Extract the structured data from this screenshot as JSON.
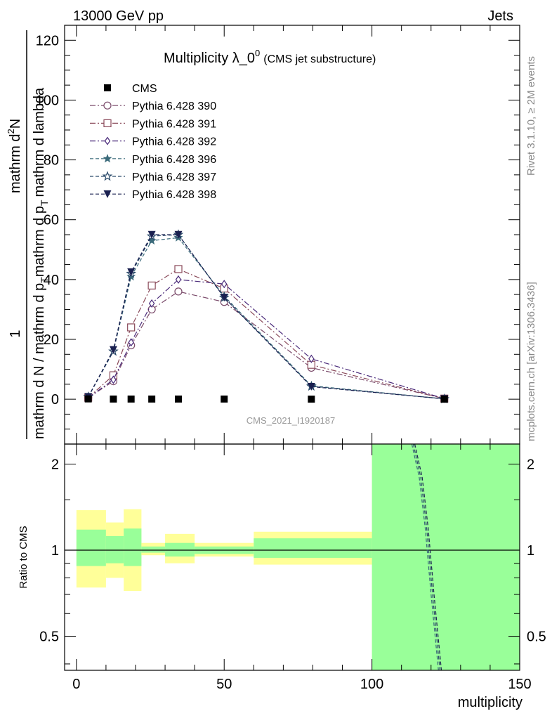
{
  "header": {
    "left": "13000 GeV pp",
    "right": "Jets"
  },
  "side": {
    "rivet": "Rivet 3.1.10, ≥ 2M events",
    "mcplots": "mcplots.cern.ch [arXiv:1306.3436]"
  },
  "title": {
    "main": "Multiplicity λ_0",
    "sup": "0",
    "sub": "(CMS jet substructure)"
  },
  "watermark": "CMS_2021_I1920187",
  "ylabel_main": {
    "one": "1",
    "denominator": "mathrm d N / mathrm d p",
    "denominator_sub": "T",
    "denominator_tail": "mathrm d p",
    "denominator_tail_sub": "T",
    "denominator_end": "mathrm d lambda",
    "numerator": "mathrm d",
    "numerator_sup": "2",
    "numerator_end": "N"
  },
  "ylabel_ratio": "Ratio to CMS",
  "xlabel": "multiplicity",
  "colors": {
    "data": "#000000",
    "band_outer": "#ffff99",
    "band_inner": "#99ff99"
  },
  "chart_data": [
    {
      "type": "line",
      "panel": "main",
      "xlim": [
        -4,
        150
      ],
      "ylim": [
        -15,
        125
      ],
      "xticks": [
        0,
        50,
        100,
        150
      ],
      "yticks": [
        0,
        20,
        40,
        60,
        80,
        100,
        120
      ],
      "legend_position": "top-left",
      "data": {
        "name": "CMS",
        "x": [
          4,
          12.5,
          18.5,
          25.5,
          34.5,
          50,
          79.5,
          124.5
        ],
        "y": [
          0.1,
          0.05,
          0.05,
          0.05,
          0.05,
          0.05,
          0.02,
          0.0
        ],
        "color": "#000000"
      },
      "series": [
        {
          "name": "Pythia 6.428 390",
          "color": "#7a4a6a",
          "marker": "circle-open",
          "dash": "8,3,2,3",
          "x": [
            4,
            12.5,
            18.5,
            25.5,
            34.5,
            50,
            79.5,
            124.5
          ],
          "y": [
            0.5,
            6.0,
            18.0,
            30.0,
            36.0,
            32.5,
            10.5,
            0.2
          ]
        },
        {
          "name": "Pythia 6.428 391",
          "color": "#8a4a5a",
          "marker": "square-open",
          "dash": "8,3,2,3",
          "x": [
            4,
            12.5,
            18.5,
            25.5,
            34.5,
            50,
            79.5,
            124.5
          ],
          "y": [
            0.5,
            8.0,
            24.0,
            38.0,
            43.5,
            37.0,
            11.5,
            0.2
          ]
        },
        {
          "name": "Pythia 6.428 392",
          "color": "#4a2a7a",
          "marker": "diamond-open",
          "dash": "8,3,2,3",
          "x": [
            4,
            12.5,
            18.5,
            25.5,
            34.5,
            50,
            79.5,
            124.5
          ],
          "y": [
            0.5,
            6.5,
            19.0,
            32.0,
            40.0,
            38.5,
            13.5,
            0.2
          ]
        },
        {
          "name": "Pythia 6.428 396",
          "color": "#3a6a7a",
          "marker": "star-filled",
          "dash": "5,3",
          "x": [
            4,
            12.5,
            18.5,
            25.5,
            34.5,
            50,
            79.5,
            124.5
          ],
          "y": [
            0.8,
            16.0,
            41.0,
            53.0,
            54.0,
            34.5,
            4.5,
            0.1
          ]
        },
        {
          "name": "Pythia 6.428 397",
          "color": "#2a4a6a",
          "marker": "star-open",
          "dash": "5,3",
          "x": [
            4,
            12.5,
            18.5,
            25.5,
            34.5,
            50,
            79.5,
            124.5
          ],
          "y": [
            0.8,
            16.0,
            42.0,
            54.5,
            55.0,
            34.0,
            4.3,
            0.1
          ]
        },
        {
          "name": "Pythia 6.428 398",
          "color": "#1a2050",
          "marker": "triangle-down-filled",
          "dash": "5,3",
          "x": [
            4,
            12.5,
            18.5,
            25.5,
            34.5,
            50,
            79.5,
            124.5
          ],
          "y": [
            0.8,
            16.5,
            42.5,
            55.0,
            55.0,
            34.0,
            4.2,
            0.1
          ]
        }
      ]
    },
    {
      "type": "area",
      "panel": "ratio",
      "xlim": [
        -4,
        150
      ],
      "ylim": [
        0.38,
        2.35
      ],
      "ylog": true,
      "xticks": [
        0,
        50,
        100,
        150
      ],
      "yticks": [
        0.5,
        1,
        2
      ],
      "reference_line": 1,
      "bins": [
        {
          "x0": 0,
          "x1": 10,
          "outer": [
            0.74,
            1.38
          ],
          "inner": [
            0.88,
            1.18
          ]
        },
        {
          "x0": 10,
          "x1": 16,
          "outer": [
            0.8,
            1.25
          ],
          "inner": [
            0.9,
            1.12
          ]
        },
        {
          "x0": 16,
          "x1": 22,
          "outer": [
            0.72,
            1.39
          ],
          "inner": [
            0.88,
            1.19
          ]
        },
        {
          "x0": 22,
          "x1": 30,
          "outer": [
            0.96,
            1.06
          ],
          "inner": [
            0.98,
            1.03
          ]
        },
        {
          "x0": 30,
          "x1": 40,
          "outer": [
            0.9,
            1.14
          ],
          "inner": [
            0.95,
            1.06
          ]
        },
        {
          "x0": 40,
          "x1": 60,
          "outer": [
            0.95,
            1.06
          ],
          "inner": [
            0.97,
            1.03
          ]
        },
        {
          "x0": 60,
          "x1": 100,
          "outer": [
            0.89,
            1.16
          ],
          "inner": [
            0.94,
            1.1
          ]
        },
        {
          "x0": 100,
          "x1": 150,
          "outer": [
            0.38,
            2.35
          ],
          "inner": [
            0.38,
            2.35
          ]
        }
      ],
      "series": [
        {
          "name": "Pythia 6.428 396",
          "color": "#3a6a7a",
          "dash": "5,3",
          "x": [
            113.5,
            116,
            118,
            120,
            122.5
          ],
          "y": [
            2.35,
            1.8,
            1.2,
            0.7,
            0.38
          ]
        },
        {
          "name": "Pythia 6.428 397",
          "color": "#2a4a6a",
          "dash": "5,3",
          "x": [
            114,
            116.5,
            118.5,
            120.5,
            123
          ],
          "y": [
            2.35,
            1.8,
            1.2,
            0.7,
            0.38
          ]
        },
        {
          "name": "Pythia 6.428 398",
          "color": "#1a2050",
          "dash": "5,3",
          "x": [
            114.5,
            117,
            119,
            121,
            123.5
          ],
          "y": [
            2.35,
            1.8,
            1.2,
            0.7,
            0.38
          ]
        }
      ]
    }
  ]
}
